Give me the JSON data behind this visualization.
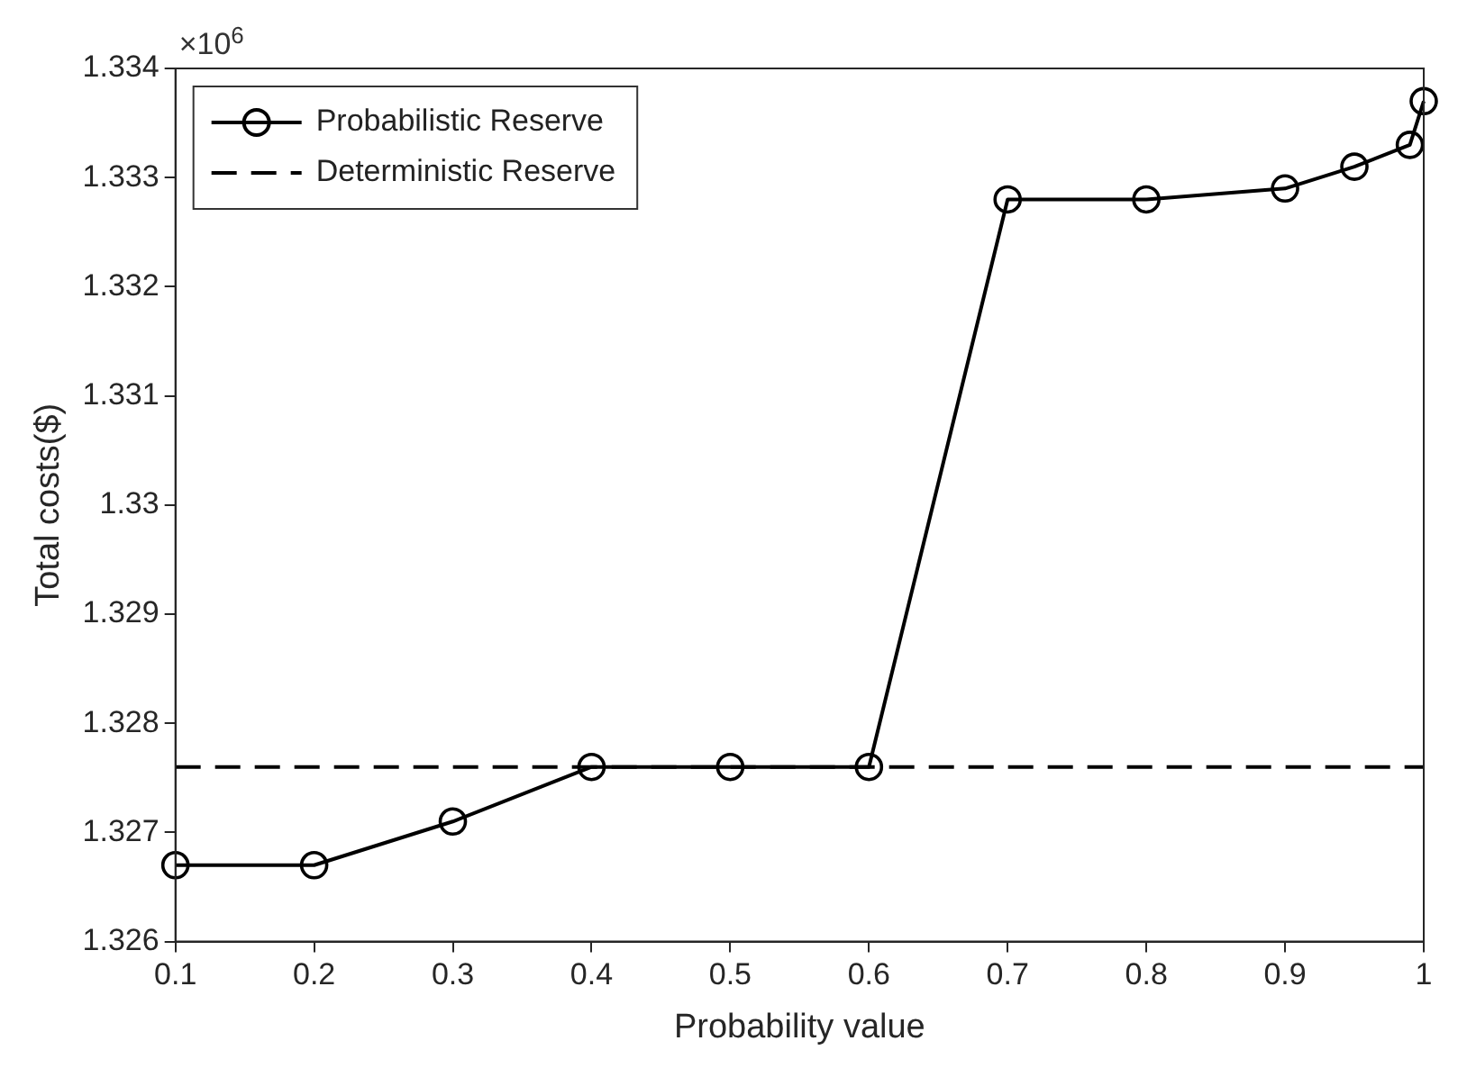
{
  "chart_data": {
    "type": "line",
    "xlabel": "Probability value",
    "ylabel": "Total costs($)",
    "annotations": [
      "×10$^{6}$"
    ],
    "series": [
      {
        "name": "Probabilistic Reserve",
        "color": "#000000",
        "x": [
          0.1,
          0.2,
          0.3,
          0.4,
          0.5,
          0.6,
          0.7,
          0.8,
          0.9,
          0.95,
          0.99,
          1.0
        ],
        "values": [
          1.3267,
          1.3267,
          1.3271,
          1.3276,
          1.3276,
          1.3276,
          1.3328,
          1.3328,
          1.3329,
          1.3331,
          1.3333,
          1.3337
        ]
      }
    ],
    "ref_lines": [
      {
        "axis": "y",
        "value": 1.3276,
        "label": "Deterministic Reserve",
        "color": "#000000",
        "line_style": "dashed"
      }
    ],
    "xlim": [
      0.1,
      1
    ],
    "ylim": [
      1.326,
      1.334
    ],
    "xticks": [
      0.1,
      0.2,
      0.3,
      0.4,
      0.5,
      0.6,
      0.7,
      0.8,
      0.9,
      1
    ],
    "yticks": [
      1.326,
      1.327,
      1.328,
      1.329,
      1.33,
      1.331,
      1.332,
      1.333,
      1.334
    ],
    "grid": false,
    "legend": "top left",
    "marker": "circle",
    "line_style": "solid"
  }
}
